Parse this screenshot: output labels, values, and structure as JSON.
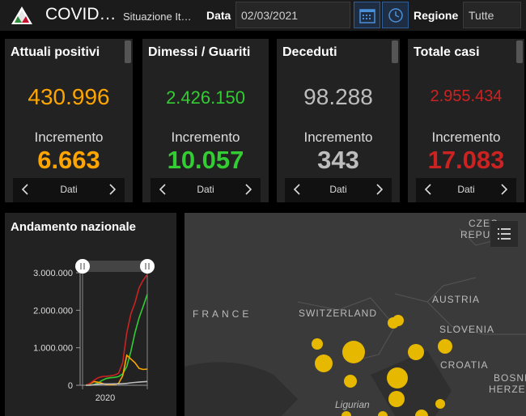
{
  "header": {
    "title": "COVID…",
    "subtitle": "Situazione It…",
    "date_label": "Data",
    "date_value": "02/03/2021",
    "region_label": "Regione",
    "region_value": "Tutte"
  },
  "cards": [
    {
      "title": "Attuali positivi",
      "total": "430.996",
      "inc_label": "Incremento",
      "inc": "6.663",
      "nav_label": "Dati",
      "color": "#ffa500"
    },
    {
      "title": "Dimessi / Guariti",
      "total": "2.426.150",
      "inc_label": "Incremento",
      "inc": "10.057",
      "nav_label": "Dati",
      "color": "#33cc33"
    },
    {
      "title": "Deceduti",
      "total": "98.288",
      "inc_label": "Incremento",
      "inc": "343",
      "nav_label": "Dati",
      "color": "#bdbdbd"
    },
    {
      "title": "Totale casi",
      "total": "2.955.434",
      "inc_label": "Incremento",
      "inc": "17.083",
      "nav_label": "Dati",
      "color": "#cc2222"
    }
  ],
  "trend": {
    "title": "Andamento nazionale"
  },
  "chart_data": {
    "type": "line",
    "title": "Andamento nazionale",
    "y_ticks": [
      "3.000.000",
      "2.000.000",
      "1.000.000",
      "0"
    ],
    "x_ticks": [
      "2020"
    ],
    "ylim": [
      0,
      3000000
    ],
    "series": [
      {
        "color": "#33cc33",
        "values": [
          0,
          5000,
          20000,
          60000,
          130000,
          180000,
          200000,
          210000,
          230000,
          300000,
          500000,
          900000,
          1400000,
          1800000,
          2100000,
          2426150
        ]
      },
      {
        "color": "#ffa500",
        "values": [
          0,
          40000,
          100000,
          80000,
          50000,
          20000,
          15000,
          20000,
          50000,
          250000,
          800000,
          700000,
          600000,
          450000,
          420000,
          430996
        ]
      },
      {
        "color": "#cc2222",
        "values": [
          0,
          50000,
          130000,
          200000,
          230000,
          240000,
          250000,
          270000,
          320000,
          600000,
          1400000,
          1900000,
          2200000,
          2600000,
          2800000,
          2955434
        ]
      },
      {
        "color": "#bdbdbd",
        "values": [
          0,
          2000,
          15000,
          28000,
          33000,
          35000,
          35500,
          36000,
          37000,
          40000,
          50000,
          65000,
          75000,
          85000,
          93000,
          98288
        ]
      }
    ]
  },
  "map": {
    "labels": [
      "FRANCE",
      "SWITZERLAND",
      "AUSTRIA",
      "SLOVENIA",
      "CROATIA",
      "CZEC",
      "REPUB",
      "BOSNI",
      "HERZEG",
      "Ligurian"
    ],
    "marker_color": "#e6b800"
  }
}
